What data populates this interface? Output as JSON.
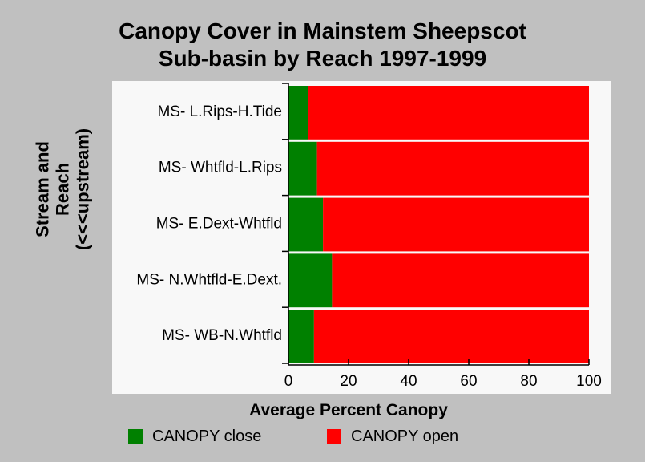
{
  "chart_data": {
    "type": "bar",
    "orientation": "horizontal",
    "stacked": true,
    "title_lines": [
      "Canopy Cover in Mainstem Sheepscot",
      "Sub-basin by Reach 1997-1999"
    ],
    "ylabel_lines": [
      "Stream and",
      "Reach",
      "(<<<upstream)"
    ],
    "xlabel": "Average Percent Canopy",
    "categories": [
      "MS- L.Rips-H.Tide",
      "MS- Whtfld-L.Rips",
      "MS- E.Dext-Whtfld",
      "MS- N.Whtfld-E.Dext.",
      "MS- WB-N.Whtfld"
    ],
    "series": [
      {
        "name": "CANOPY close",
        "color": "#008000",
        "values": [
          6.5,
          9.5,
          11.5,
          14.5,
          8.5
        ]
      },
      {
        "name": "CANOPY open",
        "color": "#ff0000",
        "values": [
          93.5,
          90.5,
          88.5,
          85.5,
          91.5
        ]
      }
    ],
    "xlim": [
      0,
      100
    ],
    "xticks": [
      0,
      20,
      40,
      60,
      80,
      100
    ],
    "grid": false,
    "legend_position": "bottom",
    "plot_background": "#f8f8f8",
    "page_background": "#c0c0c0"
  }
}
